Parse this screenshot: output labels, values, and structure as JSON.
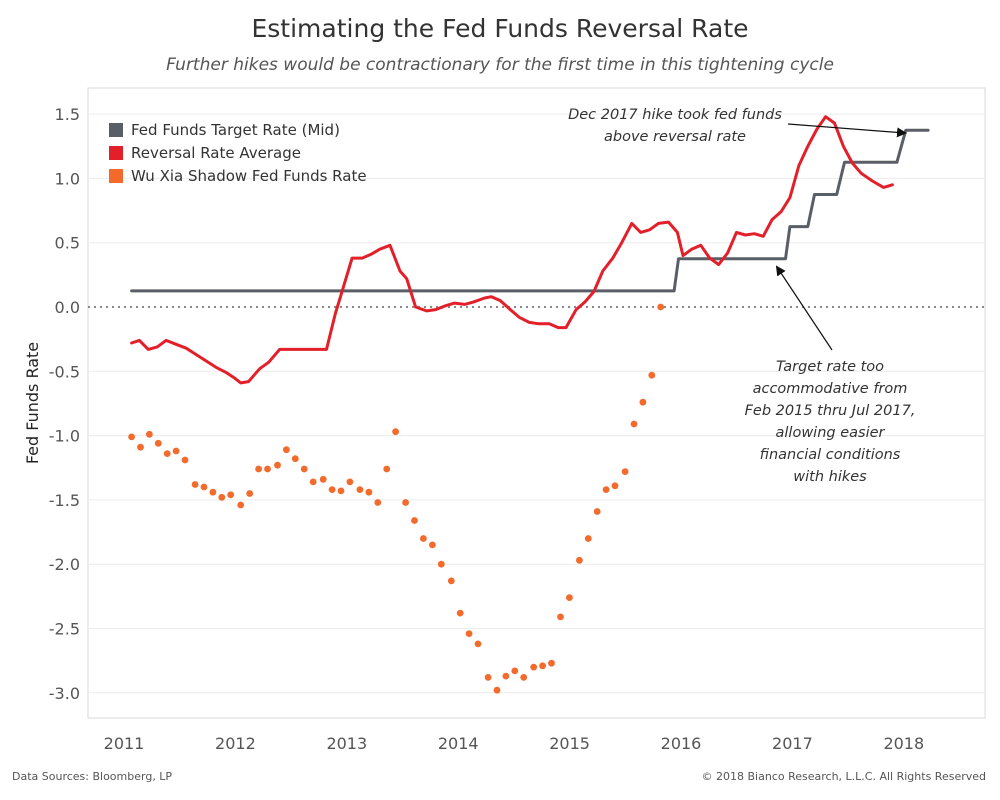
{
  "title": "Estimating the Fed Funds Reversal Rate",
  "subtitle": "Further hikes would be contractionary for the first time in this tightening cycle",
  "footer": {
    "left": "Data Sources: Bloomberg, LP",
    "right": "© 2018 Bianco Research, L.L.C. All Rights Reserved"
  },
  "annotations": {
    "top": [
      "Dec 2017 hike took fed funds",
      "above reversal rate"
    ],
    "bottom": [
      "Target rate too",
      "accommodative from",
      "Feb 2015 thru Jul 2017,",
      "allowing easier",
      "financial conditions",
      "with hikes"
    ]
  },
  "chart_data": {
    "type": "line",
    "title": "Estimating the Fed Funds Reversal Rate",
    "ylabel": "Fed Funds Rate",
    "xlabel": "",
    "xlim": [
      2010.7,
      2018.4
    ],
    "ylim": [
      -3.3,
      1.7
    ],
    "yticks": [
      1.5,
      1.0,
      0.5,
      0.0,
      -0.5,
      -1.0,
      -1.5,
      -2.0,
      -2.5,
      -3.0
    ],
    "ytick_labels": [
      "1.5",
      "1.0",
      "0.5",
      "0.0",
      "-0.5",
      "-1.0",
      "-1.5",
      "-2.0",
      "-2.5",
      "-3.0"
    ],
    "xticks": [
      2011,
      2012,
      2013,
      2014,
      2015,
      2016,
      2017,
      2018
    ],
    "xtick_labels": [
      "2011",
      "2012",
      "2013",
      "2014",
      "2015",
      "2016",
      "2017",
      "2018"
    ],
    "zero_line": true,
    "grid": true,
    "legend_position": "top-left",
    "series": [
      {
        "name": "Fed Funds Target Rate (Mid)",
        "style": "line",
        "color": "#5a5e66",
        "points": [
          [
            2011.05,
            0.125
          ],
          [
            2015.92,
            0.125
          ],
          [
            2015.96,
            0.375
          ],
          [
            2016.92,
            0.375
          ],
          [
            2016.96,
            0.625
          ],
          [
            2017.12,
            0.625
          ],
          [
            2017.18,
            0.875
          ],
          [
            2017.38,
            0.875
          ],
          [
            2017.45,
            1.125
          ],
          [
            2017.92,
            1.125
          ],
          [
            2018.0,
            1.375
          ],
          [
            2018.2,
            1.375
          ]
        ]
      },
      {
        "name": "Reversal Rate Average",
        "style": "line",
        "color": "#e3202a",
        "points": [
          [
            2011.05,
            -0.28
          ],
          [
            2011.12,
            -0.26
          ],
          [
            2011.2,
            -0.33
          ],
          [
            2011.28,
            -0.31
          ],
          [
            2011.36,
            -0.26
          ],
          [
            2011.45,
            -0.29
          ],
          [
            2011.54,
            -0.32
          ],
          [
            2011.63,
            -0.37
          ],
          [
            2011.72,
            -0.42
          ],
          [
            2011.81,
            -0.47
          ],
          [
            2011.9,
            -0.51
          ],
          [
            2011.97,
            -0.55
          ],
          [
            2012.03,
            -0.59
          ],
          [
            2012.1,
            -0.58
          ],
          [
            2012.2,
            -0.48
          ],
          [
            2012.28,
            -0.43
          ],
          [
            2012.38,
            -0.33
          ],
          [
            2012.5,
            -0.33
          ],
          [
            2012.65,
            -0.33
          ],
          [
            2012.8,
            -0.33
          ],
          [
            2012.88,
            -0.05
          ],
          [
            2012.95,
            0.15
          ],
          [
            2013.03,
            0.38
          ],
          [
            2013.12,
            0.38
          ],
          [
            2013.2,
            0.41
          ],
          [
            2013.28,
            0.45
          ],
          [
            2013.37,
            0.48
          ],
          [
            2013.46,
            0.28
          ],
          [
            2013.52,
            0.22
          ],
          [
            2013.6,
            0.0
          ],
          [
            2013.7,
            -0.03
          ],
          [
            2013.78,
            -0.02
          ],
          [
            2013.87,
            0.01
          ],
          [
            2013.95,
            0.03
          ],
          [
            2014.04,
            0.02
          ],
          [
            2014.12,
            0.04
          ],
          [
            2014.22,
            0.07
          ],
          [
            2014.28,
            0.08
          ],
          [
            2014.36,
            0.05
          ],
          [
            2014.45,
            -0.02
          ],
          [
            2014.53,
            -0.08
          ],
          [
            2014.62,
            -0.12
          ],
          [
            2014.7,
            -0.13
          ],
          [
            2014.8,
            -0.13
          ],
          [
            2014.88,
            -0.16
          ],
          [
            2014.95,
            -0.16
          ],
          [
            2015.04,
            -0.02
          ],
          [
            2015.12,
            0.04
          ],
          [
            2015.2,
            0.12
          ],
          [
            2015.28,
            0.28
          ],
          [
            2015.37,
            0.38
          ],
          [
            2015.45,
            0.5
          ],
          [
            2015.54,
            0.65
          ],
          [
            2015.62,
            0.58
          ],
          [
            2015.7,
            0.6
          ],
          [
            2015.78,
            0.65
          ],
          [
            2015.87,
            0.66
          ],
          [
            2015.95,
            0.58
          ],
          [
            2016.0,
            0.4
          ],
          [
            2016.08,
            0.45
          ],
          [
            2016.16,
            0.48
          ],
          [
            2016.24,
            0.38
          ],
          [
            2016.32,
            0.33
          ],
          [
            2016.4,
            0.42
          ],
          [
            2016.48,
            0.58
          ],
          [
            2016.56,
            0.56
          ],
          [
            2016.64,
            0.57
          ],
          [
            2016.72,
            0.55
          ],
          [
            2016.8,
            0.68
          ],
          [
            2016.88,
            0.74
          ],
          [
            2016.96,
            0.85
          ],
          [
            2017.04,
            1.1
          ],
          [
            2017.12,
            1.25
          ],
          [
            2017.2,
            1.38
          ],
          [
            2017.28,
            1.48
          ],
          [
            2017.36,
            1.43
          ],
          [
            2017.44,
            1.25
          ],
          [
            2017.52,
            1.12
          ],
          [
            2017.6,
            1.04
          ],
          [
            2017.7,
            0.98
          ],
          [
            2017.8,
            0.93
          ],
          [
            2017.88,
            0.95
          ]
        ]
      },
      {
        "name": "Wu Xia Shadow Fed Funds Rate",
        "style": "dots",
        "color": "#f26b2d",
        "points": [
          [
            2011.05,
            -1.01
          ],
          [
            2011.13,
            -1.09
          ],
          [
            2011.21,
            -0.99
          ],
          [
            2011.29,
            -1.06
          ],
          [
            2011.37,
            -1.14
          ],
          [
            2011.45,
            -1.12
          ],
          [
            2011.53,
            -1.19
          ],
          [
            2011.62,
            -1.38
          ],
          [
            2011.7,
            -1.4
          ],
          [
            2011.78,
            -1.44
          ],
          [
            2011.86,
            -1.48
          ],
          [
            2011.94,
            -1.46
          ],
          [
            2012.03,
            -1.54
          ],
          [
            2012.11,
            -1.45
          ],
          [
            2012.19,
            -1.26
          ],
          [
            2012.27,
            -1.26
          ],
          [
            2012.36,
            -1.23
          ],
          [
            2012.44,
            -1.11
          ],
          [
            2012.52,
            -1.18
          ],
          [
            2012.6,
            -1.26
          ],
          [
            2012.68,
            -1.36
          ],
          [
            2012.77,
            -1.34
          ],
          [
            2012.85,
            -1.42
          ],
          [
            2012.93,
            -1.43
          ],
          [
            2013.01,
            -1.36
          ],
          [
            2013.1,
            -1.42
          ],
          [
            2013.18,
            -1.44
          ],
          [
            2013.26,
            -1.52
          ],
          [
            2013.34,
            -1.26
          ],
          [
            2013.42,
            -0.97
          ],
          [
            2013.51,
            -1.52
          ],
          [
            2013.59,
            -1.66
          ],
          [
            2013.67,
            -1.8
          ],
          [
            2013.75,
            -1.85
          ],
          [
            2013.83,
            -2.0
          ],
          [
            2013.92,
            -2.13
          ],
          [
            2014.0,
            -2.38
          ],
          [
            2014.08,
            -2.54
          ],
          [
            2014.16,
            -2.62
          ],
          [
            2014.25,
            -2.88
          ],
          [
            2014.33,
            -2.98
          ],
          [
            2014.41,
            -2.87
          ],
          [
            2014.49,
            -2.83
          ],
          [
            2014.57,
            -2.88
          ],
          [
            2014.66,
            -2.8
          ],
          [
            2014.74,
            -2.79
          ],
          [
            2014.82,
            -2.77
          ],
          [
            2014.9,
            -2.41
          ],
          [
            2014.98,
            -2.26
          ],
          [
            2015.07,
            -1.97
          ],
          [
            2015.15,
            -1.8
          ],
          [
            2015.23,
            -1.59
          ],
          [
            2015.31,
            -1.42
          ],
          [
            2015.39,
            -1.39
          ],
          [
            2015.48,
            -1.28
          ],
          [
            2015.56,
            -0.91
          ],
          [
            2015.64,
            -0.74
          ],
          [
            2015.72,
            -0.53
          ],
          [
            2015.8,
            0.0
          ]
        ]
      }
    ]
  }
}
